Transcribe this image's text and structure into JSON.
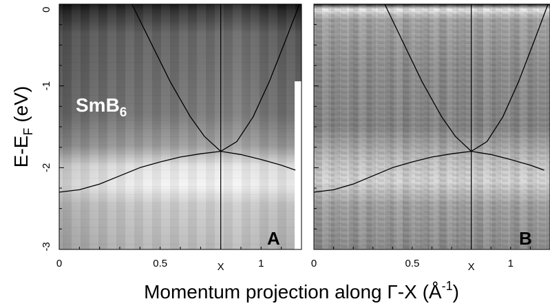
{
  "chart_data": [
    {
      "type": "heatmap",
      "panel_label": "A",
      "compound": {
        "base": "SmB",
        "sub": "6"
      },
      "xlim": [
        0,
        1.2
      ],
      "ylim": [
        -3,
        0
      ],
      "x_ticks": [
        {
          "value": 0,
          "label": "0"
        },
        {
          "value": 0.5,
          "label": "0.5"
        },
        {
          "value": 0.8,
          "label": "X"
        },
        {
          "value": 1.0,
          "label": "1"
        }
      ],
      "y_ticks": [
        {
          "value": 0,
          "label": "0"
        },
        {
          "value": -1,
          "label": "-1"
        },
        {
          "value": -2,
          "label": "-2"
        },
        {
          "value": -3,
          "label": "-3"
        }
      ],
      "x_point_X": 0.8,
      "bright_band_energy": -2.05,
      "background": "dark",
      "curves": [
        {
          "x": [
            0.36,
            0.45,
            0.55,
            0.65,
            0.72,
            0.8,
            0.88,
            0.96,
            1.04,
            1.12,
            1.19
          ],
          "y": [
            0.0,
            -0.45,
            -0.95,
            -1.38,
            -1.62,
            -1.8,
            -1.68,
            -1.38,
            -0.95,
            -0.45,
            0.0
          ]
        },
        {
          "x": [
            0.0,
            0.1,
            0.2,
            0.3,
            0.4,
            0.5,
            0.6,
            0.7,
            0.8,
            0.9,
            1.0,
            1.1,
            1.17
          ],
          "y": [
            -2.3,
            -2.27,
            -2.2,
            -2.1,
            -2.0,
            -1.93,
            -1.87,
            -1.83,
            -1.8,
            -1.84,
            -1.9,
            -1.97,
            -2.03
          ]
        }
      ]
    },
    {
      "type": "heatmap",
      "panel_label": "B",
      "xlim": [
        0,
        1.2
      ],
      "ylim": [
        -3,
        0
      ],
      "x_ticks": [
        {
          "value": 0,
          "label": "0"
        },
        {
          "value": 0.5,
          "label": "0.5"
        },
        {
          "value": 0.8,
          "label": "X"
        },
        {
          "value": 1.0,
          "label": "1"
        }
      ],
      "x_point_X": 0.8,
      "bright_band_energy": -1.95,
      "background": "mid-gray",
      "curves": [
        {
          "x": [
            0.36,
            0.45,
            0.55,
            0.65,
            0.72,
            0.8,
            0.88,
            0.96,
            1.04,
            1.12,
            1.19
          ],
          "y": [
            0.0,
            -0.45,
            -0.95,
            -1.38,
            -1.62,
            -1.8,
            -1.68,
            -1.38,
            -0.95,
            -0.45,
            0.0
          ]
        },
        {
          "x": [
            0.0,
            0.1,
            0.2,
            0.3,
            0.4,
            0.5,
            0.6,
            0.7,
            0.8,
            0.9,
            1.0,
            1.1,
            1.17
          ],
          "y": [
            -2.3,
            -2.27,
            -2.2,
            -2.1,
            -2.0,
            -1.93,
            -1.87,
            -1.83,
            -1.8,
            -1.84,
            -1.9,
            -1.97,
            -2.03
          ]
        }
      ]
    }
  ],
  "axes": {
    "ylabel": {
      "main": "E-E",
      "sub": "F",
      "unit": " (eV)"
    },
    "xlabel": {
      "main": "Momentum projection along Γ-X (Å",
      "sup": "-1",
      "close": ")"
    }
  },
  "colors": {
    "curve": "#000000",
    "frame": "#000000",
    "compound_text": "#ffffff"
  }
}
